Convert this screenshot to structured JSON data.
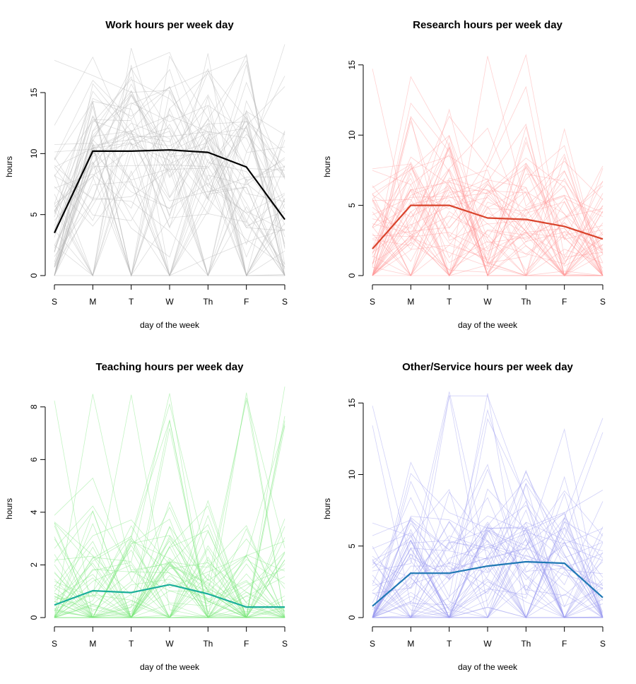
{
  "chart_data": [
    {
      "type": "line",
      "title": "Work hours per week day",
      "xlabel": "day of the week",
      "ylabel": "hours",
      "categories": [
        "S",
        "M",
        "T",
        "W",
        "Th",
        "F",
        "S"
      ],
      "yticks": [
        0,
        5,
        10,
        15
      ],
      "ylim": [
        0,
        19
      ],
      "grid": false,
      "legend": "none",
      "series": [
        {
          "values": [
            3.5,
            10.2,
            10.2,
            10.3,
            10.1,
            8.9,
            4.6
          ],
          "color": "#000000",
          "emphasis": "mean"
        }
      ],
      "individual_lines": {
        "color": "#b3b3b3",
        "count": 60,
        "value_range": [
          0,
          19
        ]
      }
    },
    {
      "type": "line",
      "title": "Research hours per week day",
      "xlabel": "day of the week",
      "ylabel": "hours",
      "categories": [
        "S",
        "M",
        "T",
        "W",
        "Th",
        "F",
        "S"
      ],
      "yticks": [
        0,
        5,
        10,
        15
      ],
      "ylim": [
        0,
        16.5
      ],
      "grid": false,
      "legend": "none",
      "series": [
        {
          "values": [
            1.9,
            5.0,
            5.0,
            4.1,
            4.0,
            3.5,
            2.6
          ],
          "color": "#d9432b",
          "emphasis": "mean"
        }
      ],
      "individual_lines": {
        "color": "#ff9a9a",
        "count": 60,
        "value_range": [
          0,
          16
        ]
      }
    },
    {
      "type": "line",
      "title": "Teaching hours per week day",
      "xlabel": "day of the week",
      "ylabel": "hours",
      "categories": [
        "S",
        "M",
        "T",
        "W",
        "Th",
        "F",
        "S"
      ],
      "yticks": [
        0,
        2,
        4,
        6,
        8
      ],
      "ylim": [
        0,
        8.8
      ],
      "grid": false,
      "legend": "none",
      "series": [
        {
          "values": [
            0.48,
            1.02,
            0.95,
            1.25,
            0.9,
            0.4,
            0.4
          ],
          "color": "#1aaf9a",
          "emphasis": "mean"
        }
      ],
      "individual_lines": {
        "color": "#7be67b",
        "count": 60,
        "value_range": [
          0,
          8.8
        ]
      }
    },
    {
      "type": "line",
      "title": "Other/Service hours per week day",
      "xlabel": "day of the week",
      "ylabel": "hours",
      "categories": [
        "S",
        "M",
        "T",
        "W",
        "Th",
        "F",
        "S"
      ],
      "yticks": [
        0,
        5,
        10,
        15
      ],
      "ylim": [
        0,
        16.2
      ],
      "grid": false,
      "legend": "none",
      "series": [
        {
          "values": [
            0.8,
            3.1,
            3.1,
            3.6,
            3.9,
            3.8,
            1.4
          ],
          "color": "#1f78b4",
          "emphasis": "mean"
        }
      ],
      "individual_lines": {
        "color": "#9a9af0",
        "count": 60,
        "value_range": [
          0,
          16
        ]
      }
    }
  ]
}
